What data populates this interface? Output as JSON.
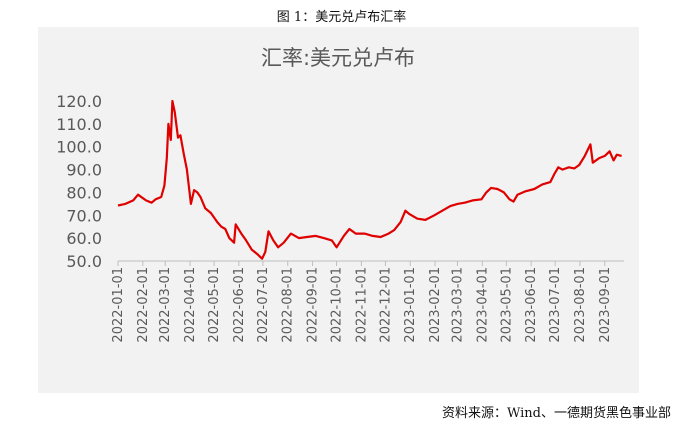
{
  "figure_caption": "图 1：美元兑卢布汇率",
  "source_note": "资料来源：Wind、一德期货黑色事业部",
  "colors": {
    "line": "#e00000",
    "axis": "#bfbfbf",
    "text": "#595959",
    "panel": "#f2f2f2"
  },
  "chart_data": {
    "type": "line",
    "title": "汇率:美元兑卢布",
    "xlabel": "",
    "ylabel": "",
    "ylim": [
      50,
      120
    ],
    "y_ticks": [
      "50.0",
      "60.0",
      "70.0",
      "80.0",
      "90.0",
      "100.0",
      "110.0",
      "120.0"
    ],
    "x_ticks": [
      "2022-01-01",
      "2022-02-01",
      "2022-03-01",
      "2022-04-01",
      "2022-05-01",
      "2022-06-01",
      "2022-07-01",
      "2022-08-01",
      "2022-09-01",
      "2022-10-01",
      "2022-11-01",
      "2022-12-01",
      "2023-01-01",
      "2023-02-01",
      "2023-03-01",
      "2023-04-01",
      "2023-05-01",
      "2023-06-01",
      "2023-07-01",
      "2023-08-01",
      "2023-09-01"
    ],
    "xlim": [
      "2022-01-01",
      "2023-09-25"
    ],
    "grid": false,
    "legend": "none",
    "series": [
      {
        "points": [
          [
            "2022-01-01",
            74.3
          ],
          [
            "2022-01-10",
            75.0
          ],
          [
            "2022-01-20",
            76.5
          ],
          [
            "2022-01-26",
            79.0
          ],
          [
            "2022-02-05",
            76.5
          ],
          [
            "2022-02-12",
            75.5
          ],
          [
            "2022-02-17",
            77.0
          ],
          [
            "2022-02-24",
            78.0
          ],
          [
            "2022-02-28",
            83.0
          ],
          [
            "2022-03-03",
            95.0
          ],
          [
            "2022-03-05",
            110.0
          ],
          [
            "2022-03-08",
            103.0
          ],
          [
            "2022-03-10",
            120.0
          ],
          [
            "2022-03-13",
            115.0
          ],
          [
            "2022-03-17",
            104.0
          ],
          [
            "2022-03-20",
            105.0
          ],
          [
            "2022-03-24",
            97.0
          ],
          [
            "2022-03-28",
            90.0
          ],
          [
            "2022-04-02",
            75.0
          ],
          [
            "2022-04-06",
            81.0
          ],
          [
            "2022-04-10",
            80.0
          ],
          [
            "2022-04-14",
            78.0
          ],
          [
            "2022-04-20",
            73.0
          ],
          [
            "2022-04-27",
            71.0
          ],
          [
            "2022-05-05",
            67.0
          ],
          [
            "2022-05-10",
            65.0
          ],
          [
            "2022-05-15",
            64.0
          ],
          [
            "2022-05-20",
            60.0
          ],
          [
            "2022-05-26",
            58.0
          ],
          [
            "2022-05-28",
            66.0
          ],
          [
            "2022-06-04",
            62.0
          ],
          [
            "2022-06-10",
            59.0
          ],
          [
            "2022-06-17",
            55.0
          ],
          [
            "2022-06-24",
            53.0
          ],
          [
            "2022-06-30",
            51.0
          ],
          [
            "2022-07-04",
            54.0
          ],
          [
            "2022-07-08",
            63.0
          ],
          [
            "2022-07-14",
            59.0
          ],
          [
            "2022-07-20",
            56.0
          ],
          [
            "2022-07-27",
            58.0
          ],
          [
            "2022-08-05",
            62.0
          ],
          [
            "2022-08-15",
            60.0
          ],
          [
            "2022-08-25",
            60.5
          ],
          [
            "2022-09-05",
            61.0
          ],
          [
            "2022-09-15",
            60.0
          ],
          [
            "2022-09-25",
            59.0
          ],
          [
            "2022-10-01",
            56.0
          ],
          [
            "2022-10-10",
            61.0
          ],
          [
            "2022-10-17",
            64.0
          ],
          [
            "2022-10-25",
            62.0
          ],
          [
            "2022-11-05",
            62.0
          ],
          [
            "2022-11-15",
            61.0
          ],
          [
            "2022-11-25",
            60.5
          ],
          [
            "2022-12-05",
            62.0
          ],
          [
            "2022-12-12",
            63.5
          ],
          [
            "2022-12-20",
            67.0
          ],
          [
            "2022-12-26",
            72.0
          ],
          [
            "2022-12-31",
            70.5
          ],
          [
            "2023-01-10",
            68.5
          ],
          [
            "2023-01-20",
            68.0
          ],
          [
            "2023-01-31",
            70.0
          ],
          [
            "2023-02-10",
            72.0
          ],
          [
            "2023-02-20",
            74.0
          ],
          [
            "2023-03-01",
            75.0
          ],
          [
            "2023-03-10",
            75.5
          ],
          [
            "2023-03-20",
            76.5
          ],
          [
            "2023-03-31",
            77.0
          ],
          [
            "2023-04-06",
            80.0
          ],
          [
            "2023-04-12",
            82.0
          ],
          [
            "2023-04-20",
            81.5
          ],
          [
            "2023-04-28",
            80.0
          ],
          [
            "2023-05-05",
            77.0
          ],
          [
            "2023-05-10",
            76.0
          ],
          [
            "2023-05-15",
            79.0
          ],
          [
            "2023-05-25",
            80.5
          ],
          [
            "2023-06-05",
            81.5
          ],
          [
            "2023-06-15",
            83.5
          ],
          [
            "2023-06-25",
            84.5
          ],
          [
            "2023-06-30",
            88.0
          ],
          [
            "2023-07-05",
            91.0
          ],
          [
            "2023-07-10",
            90.0
          ],
          [
            "2023-07-18",
            91.0
          ],
          [
            "2023-07-25",
            90.5
          ],
          [
            "2023-07-31",
            92.0
          ],
          [
            "2023-08-07",
            96.0
          ],
          [
            "2023-08-14",
            101.0
          ],
          [
            "2023-08-17",
            93.0
          ],
          [
            "2023-08-25",
            95.0
          ],
          [
            "2023-09-01",
            96.0
          ],
          [
            "2023-09-07",
            98.0
          ],
          [
            "2023-09-12",
            94.0
          ],
          [
            "2023-09-16",
            96.5
          ],
          [
            "2023-09-22",
            96.0
          ]
        ]
      }
    ]
  }
}
